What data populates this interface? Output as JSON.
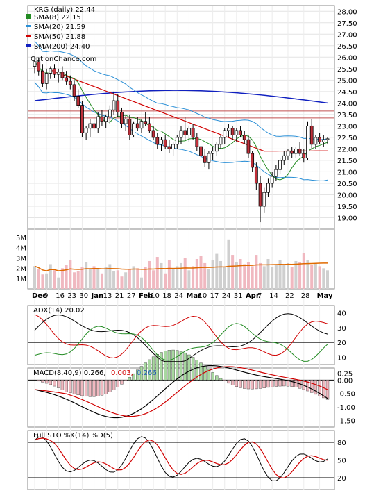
{
  "chart_data": [
    {
      "type": "candlestick",
      "title": "KRG (daily) 22.44",
      "legend": [
        {
          "label": "SMA(8) 22.15",
          "color": "#228b22"
        },
        {
          "label": "SMA(20) 21.59",
          "color": "#2a8fd6"
        },
        {
          "label": "SMA(50) 21.88",
          "color": "#d10000"
        },
        {
          "label": "SMA(200) 24.40",
          "color": "#1020c0"
        }
      ],
      "watermark": "OptionChance.com",
      "ylim": [
        18.5,
        28.25
      ],
      "yticks": [
        "19.00",
        "19.50",
        "20.00",
        "20.50",
        "21.00",
        "21.50",
        "22.00",
        "22.50",
        "23.00",
        "23.50",
        "24.00",
        "24.50",
        "25.00",
        "25.50",
        "26.00",
        "26.50",
        "27.00",
        "27.50",
        "28.00"
      ],
      "xtick_labels": [
        "Dec",
        "9",
        "16",
        "23",
        "30",
        "Jan",
        "13",
        "21",
        "27",
        "Feb",
        "10",
        "18",
        "24",
        "Mar",
        "10",
        "17",
        "24",
        "31",
        "Apr",
        "7",
        "14",
        "22",
        "28",
        "May"
      ],
      "horizontal_lines": [
        23.35,
        23.65
      ],
      "candles_approx": [
        [
          25.6,
          26.0,
          25.3,
          25.8
        ],
        [
          25.8,
          25.95,
          25.2,
          25.4
        ],
        [
          25.4,
          25.7,
          24.7,
          24.85
        ],
        [
          24.85,
          25.5,
          24.6,
          25.3
        ],
        [
          25.3,
          25.6,
          25.05,
          25.5
        ],
        [
          25.5,
          25.7,
          25.1,
          25.25
        ],
        [
          25.25,
          25.5,
          24.9,
          25.35
        ],
        [
          25.35,
          25.6,
          25.0,
          25.1
        ],
        [
          25.1,
          25.4,
          24.8,
          24.95
        ],
        [
          24.95,
          25.2,
          24.6,
          24.8
        ],
        [
          24.8,
          25.0,
          24.1,
          24.3
        ],
        [
          24.3,
          24.6,
          23.8,
          23.9
        ],
        [
          23.9,
          24.1,
          22.5,
          22.7
        ],
        [
          22.7,
          23.0,
          22.4,
          22.9
        ],
        [
          22.9,
          23.3,
          22.5,
          23.1
        ],
        [
          23.1,
          23.4,
          22.8,
          22.9
        ],
        [
          22.9,
          23.6,
          22.7,
          23.4
        ],
        [
          23.4,
          23.7,
          23.0,
          23.2
        ],
        [
          23.2,
          23.5,
          22.9,
          23.4
        ],
        [
          23.4,
          23.9,
          23.1,
          23.7
        ],
        [
          23.7,
          24.5,
          23.5,
          24.1
        ],
        [
          24.1,
          24.4,
          23.4,
          23.6
        ],
        [
          23.6,
          23.8,
          22.9,
          23.1
        ],
        [
          23.1,
          23.5,
          22.8,
          23.3
        ],
        [
          23.3,
          23.5,
          22.4,
          22.6
        ],
        [
          22.6,
          23.2,
          22.5,
          23.1
        ],
        [
          23.1,
          23.4,
          22.8,
          22.9
        ],
        [
          22.9,
          23.3,
          22.7,
          23.2
        ],
        [
          23.2,
          23.6,
          23.0,
          23.1
        ],
        [
          23.1,
          23.4,
          22.7,
          22.8
        ],
        [
          22.8,
          23.0,
          22.4,
          22.5
        ],
        [
          22.5,
          22.7,
          22.0,
          22.2
        ],
        [
          22.2,
          22.5,
          21.9,
          22.4
        ],
        [
          22.4,
          22.6,
          22.0,
          22.1
        ],
        [
          22.1,
          22.4,
          21.8,
          22.0
        ],
        [
          22.0,
          22.3,
          21.7,
          22.2
        ],
        [
          22.2,
          22.6,
          22.0,
          22.5
        ],
        [
          22.5,
          23.0,
          22.2,
          22.8
        ],
        [
          22.8,
          23.4,
          22.4,
          22.6
        ],
        [
          22.6,
          23.0,
          22.3,
          22.9
        ],
        [
          22.9,
          23.1,
          22.4,
          22.5
        ],
        [
          22.5,
          22.7,
          21.9,
          22.1
        ],
        [
          22.1,
          22.3,
          21.5,
          21.7
        ],
        [
          21.7,
          22.0,
          21.2,
          21.4
        ],
        [
          21.4,
          21.9,
          21.1,
          21.8
        ],
        [
          21.8,
          22.1,
          21.5,
          21.9
        ],
        [
          21.9,
          22.3,
          21.7,
          22.2
        ],
        [
          22.2,
          22.6,
          22.0,
          22.5
        ],
        [
          22.5,
          22.9,
          22.2,
          22.8
        ],
        [
          22.8,
          23.1,
          22.5,
          22.9
        ],
        [
          22.9,
          23.0,
          22.4,
          22.6
        ],
        [
          22.6,
          22.9,
          22.3,
          22.8
        ],
        [
          22.8,
          23.0,
          22.5,
          22.6
        ],
        [
          22.6,
          22.8,
          22.2,
          22.4
        ],
        [
          22.4,
          22.6,
          21.6,
          21.8
        ],
        [
          21.8,
          21.9,
          21.0,
          21.2
        ],
        [
          21.2,
          21.4,
          20.2,
          20.5
        ],
        [
          20.5,
          20.8,
          18.8,
          19.5
        ],
        [
          19.5,
          20.3,
          19.2,
          20.1
        ],
        [
          20.1,
          20.7,
          19.9,
          20.5
        ],
        [
          20.5,
          21.0,
          20.3,
          20.8
        ],
        [
          20.8,
          21.3,
          20.6,
          21.1
        ],
        [
          21.1,
          21.6,
          20.9,
          21.5
        ],
        [
          21.5,
          21.9,
          21.3,
          21.7
        ],
        [
          21.7,
          22.0,
          21.5,
          21.9
        ],
        [
          21.9,
          22.1,
          21.6,
          21.8
        ],
        [
          21.8,
          22.1,
          21.6,
          22.0
        ],
        [
          22.0,
          22.3,
          21.7,
          21.8
        ],
        [
          21.8,
          22.0,
          21.4,
          21.6
        ],
        [
          21.6,
          23.2,
          21.5,
          23.0
        ],
        [
          23.0,
          23.3,
          22.0,
          22.2
        ],
        [
          22.2,
          22.6,
          22.0,
          22.5
        ],
        [
          22.5,
          22.7,
          22.2,
          22.3
        ],
        [
          22.3,
          22.6,
          22.1,
          22.4
        ],
        [
          22.4,
          22.5,
          22.2,
          22.44
        ]
      ],
      "volume_ylim": [
        0,
        5.8
      ],
      "volume_yticks": [
        "1M",
        "2M",
        "3M",
        "4M",
        "5M"
      ],
      "volume_approx_millions": [
        2.2,
        1.9,
        1.4,
        1.5,
        2.4,
        1.8,
        1.1,
        2.0,
        2.3,
        2.8,
        1.6,
        1.7,
        2.1,
        2.6,
        1.9,
        2.2,
        2.0,
        1.5,
        2.1,
        2.4,
        1.7,
        1.8,
        1.2,
        1.6,
        1.9,
        2.2,
        2.0,
        1.1,
        2.1,
        2.7,
        1.8,
        3.1,
        2.5,
        1.5,
        2.8,
        1.9,
        2.2,
        2.5,
        3.0,
        1.8,
        2.2,
        2.9,
        3.2,
        2.5,
        1.9,
        2.8,
        3.4,
        2.7,
        2.1,
        4.8,
        3.3,
        2.6,
        2.9,
        2.4,
        2.6,
        2.2,
        3.3,
        2.5,
        2.2,
        2.9,
        2.1,
        2.3,
        2.8,
        2.4,
        2.5,
        2.1,
        2.7,
        2.6,
        3.5,
        2.8,
        2.3,
        2.5,
        2.2,
        2.0,
        1.8
      ]
    },
    {
      "type": "line",
      "title": "ADX(14) 20.02",
      "ylim": [
        5,
        45
      ],
      "yticks": [
        "10",
        "20",
        "30",
        "40"
      ]
    },
    {
      "type": "line",
      "title": "MACD(8,40,9) 0.266, 0.003, 0.266",
      "title_parts": [
        "MACD(8,40,9) 0.266,",
        "0.003,",
        "0.266"
      ],
      "title_colors": [
        "#000000",
        "#d10000",
        "#1f5fb8"
      ],
      "ylim": [
        -1.75,
        0.45
      ],
      "yticks": [
        "0.25",
        "0.00",
        "-0.50",
        "-1.00",
        "-1.50"
      ]
    },
    {
      "type": "line",
      "title": "Full STO %K(14) %D(5)",
      "ylim": [
        0,
        100
      ],
      "yticks": [
        "80",
        "50",
        "20"
      ]
    }
  ]
}
